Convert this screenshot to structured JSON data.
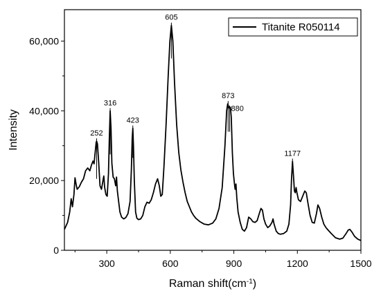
{
  "chart_data": {
    "type": "line",
    "xlabel": "Raman shift(cm",
    "xlabel_sup": "-1",
    "xlabel_close": ")",
    "ylabel": "Intensity",
    "xlim": [
      100,
      1500
    ],
    "ylim": [
      0,
      69000
    ],
    "x_ticks": [
      300,
      600,
      900,
      1200,
      1500
    ],
    "x_tick_labels": [
      "300",
      "600",
      "900",
      "1200",
      "1500"
    ],
    "y_ticks": [
      0,
      20000,
      40000,
      60000
    ],
    "y_tick_labels": [
      "0",
      "20,000",
      "40,000",
      "60,000"
    ],
    "legend": {
      "position": "top-right"
    },
    "series": [
      {
        "name": "Titanite R050114",
        "color": "#000000",
        "points": [
          [
            100,
            6000
          ],
          [
            115,
            8000
          ],
          [
            125,
            11000
          ],
          [
            132,
            14800
          ],
          [
            138,
            12500
          ],
          [
            145,
            16000
          ],
          [
            150,
            20800
          ],
          [
            155,
            19000
          ],
          [
            160,
            17500
          ],
          [
            170,
            18200
          ],
          [
            180,
            19500
          ],
          [
            190,
            20500
          ],
          [
            200,
            22800
          ],
          [
            210,
            23600
          ],
          [
            220,
            22800
          ],
          [
            228,
            24500
          ],
          [
            235,
            25600
          ],
          [
            240,
            24800
          ],
          [
            245,
            28000
          ],
          [
            250,
            31000
          ],
          [
            252,
            31300
          ],
          [
            256,
            30500
          ],
          [
            262,
            25000
          ],
          [
            268,
            18500
          ],
          [
            275,
            17500
          ],
          [
            282,
            20000
          ],
          [
            286,
            21300
          ],
          [
            290,
            18000
          ],
          [
            296,
            16000
          ],
          [
            302,
            15500
          ],
          [
            308,
            22000
          ],
          [
            312,
            32000
          ],
          [
            316,
            40000
          ],
          [
            320,
            35000
          ],
          [
            324,
            25000
          ],
          [
            330,
            21000
          ],
          [
            336,
            20500
          ],
          [
            342,
            18500
          ],
          [
            346,
            21000
          ],
          [
            350,
            17000
          ],
          [
            356,
            14000
          ],
          [
            362,
            11000
          ],
          [
            370,
            9500
          ],
          [
            380,
            9000
          ],
          [
            390,
            9400
          ],
          [
            400,
            10500
          ],
          [
            410,
            14000
          ],
          [
            416,
            23000
          ],
          [
            420,
            32000
          ],
          [
            423,
            35000
          ],
          [
            426,
            30000
          ],
          [
            430,
            20000
          ],
          [
            436,
            11000
          ],
          [
            442,
            9200
          ],
          [
            450,
            8800
          ],
          [
            460,
            9000
          ],
          [
            470,
            10000
          ],
          [
            480,
            12500
          ],
          [
            490,
            13800
          ],
          [
            500,
            13500
          ],
          [
            510,
            14500
          ],
          [
            520,
            16500
          ],
          [
            530,
            19000
          ],
          [
            540,
            20500
          ],
          [
            548,
            18500
          ],
          [
            555,
            15500
          ],
          [
            562,
            16000
          ],
          [
            570,
            24000
          ],
          [
            580,
            36000
          ],
          [
            590,
            50000
          ],
          [
            598,
            60000
          ],
          [
            605,
            64500
          ],
          [
            612,
            60000
          ],
          [
            620,
            48000
          ],
          [
            630,
            36000
          ],
          [
            640,
            28000
          ],
          [
            650,
            23000
          ],
          [
            660,
            19500
          ],
          [
            670,
            16500
          ],
          [
            680,
            14000
          ],
          [
            690,
            12500
          ],
          [
            700,
            11000
          ],
          [
            710,
            10000
          ],
          [
            720,
            9200
          ],
          [
            740,
            8200
          ],
          [
            760,
            7500
          ],
          [
            780,
            7300
          ],
          [
            800,
            7800
          ],
          [
            815,
            9000
          ],
          [
            830,
            12000
          ],
          [
            845,
            18000
          ],
          [
            858,
            30000
          ],
          [
            866,
            40000
          ],
          [
            871,
            42000
          ],
          [
            876,
            41000
          ],
          [
            880,
            40700
          ],
          [
            884,
            41000
          ],
          [
            888,
            38000
          ],
          [
            893,
            28000
          ],
          [
            898,
            22000
          ],
          [
            903,
            19000
          ],
          [
            906,
            17500
          ],
          [
            910,
            19000
          ],
          [
            914,
            15000
          ],
          [
            920,
            11000
          ],
          [
            930,
            8000
          ],
          [
            940,
            6000
          ],
          [
            950,
            5500
          ],
          [
            960,
            6500
          ],
          [
            970,
            9500
          ],
          [
            980,
            9000
          ],
          [
            990,
            8200
          ],
          [
            1000,
            8000
          ],
          [
            1010,
            8500
          ],
          [
            1020,
            10500
          ],
          [
            1028,
            12000
          ],
          [
            1035,
            11500
          ],
          [
            1042,
            9000
          ],
          [
            1050,
            7500
          ],
          [
            1060,
            6500
          ],
          [
            1070,
            7000
          ],
          [
            1080,
            8000
          ],
          [
            1085,
            9000
          ],
          [
            1090,
            7500
          ],
          [
            1100,
            5500
          ],
          [
            1110,
            4800
          ],
          [
            1120,
            4600
          ],
          [
            1135,
            4800
          ],
          [
            1150,
            5500
          ],
          [
            1160,
            7500
          ],
          [
            1168,
            13000
          ],
          [
            1172,
            20000
          ],
          [
            1177,
            25500
          ],
          [
            1182,
            21000
          ],
          [
            1186,
            17000
          ],
          [
            1190,
            16500
          ],
          [
            1194,
            18000
          ],
          [
            1198,
            16500
          ],
          [
            1205,
            14500
          ],
          [
            1215,
            14000
          ],
          [
            1225,
            15500
          ],
          [
            1235,
            17000
          ],
          [
            1242,
            16500
          ],
          [
            1250,
            13500
          ],
          [
            1260,
            10000
          ],
          [
            1270,
            8000
          ],
          [
            1280,
            7800
          ],
          [
            1290,
            10500
          ],
          [
            1297,
            13000
          ],
          [
            1305,
            12000
          ],
          [
            1315,
            9500
          ],
          [
            1325,
            7500
          ],
          [
            1335,
            6500
          ],
          [
            1345,
            5800
          ],
          [
            1360,
            4800
          ],
          [
            1380,
            3600
          ],
          [
            1400,
            3200
          ],
          [
            1415,
            3500
          ],
          [
            1430,
            4800
          ],
          [
            1440,
            5800
          ],
          [
            1448,
            6000
          ],
          [
            1458,
            5200
          ],
          [
            1470,
            4000
          ],
          [
            1485,
            3200
          ],
          [
            1500,
            2800
          ]
        ]
      }
    ],
    "peak_labels": [
      {
        "text": "252",
        "x": 252,
        "y": 31300,
        "line_y0": 20500
      },
      {
        "text": "316",
        "x": 316,
        "y": 40000,
        "line_y0": 27500
      },
      {
        "text": "423",
        "x": 423,
        "y": 35000,
        "line_y0": 26500
      },
      {
        "text": "605",
        "x": 605,
        "y": 64500,
        "line_y0": 55000
      },
      {
        "text": "873",
        "x": 873,
        "y": 42000,
        "line_y0": 34000
      },
      {
        "text": "880",
        "x": 880,
        "y": 40700,
        "line_y0": 34000
      },
      {
        "text": "1177",
        "x": 1177,
        "y": 25500,
        "line_y0": 23000
      }
    ]
  }
}
